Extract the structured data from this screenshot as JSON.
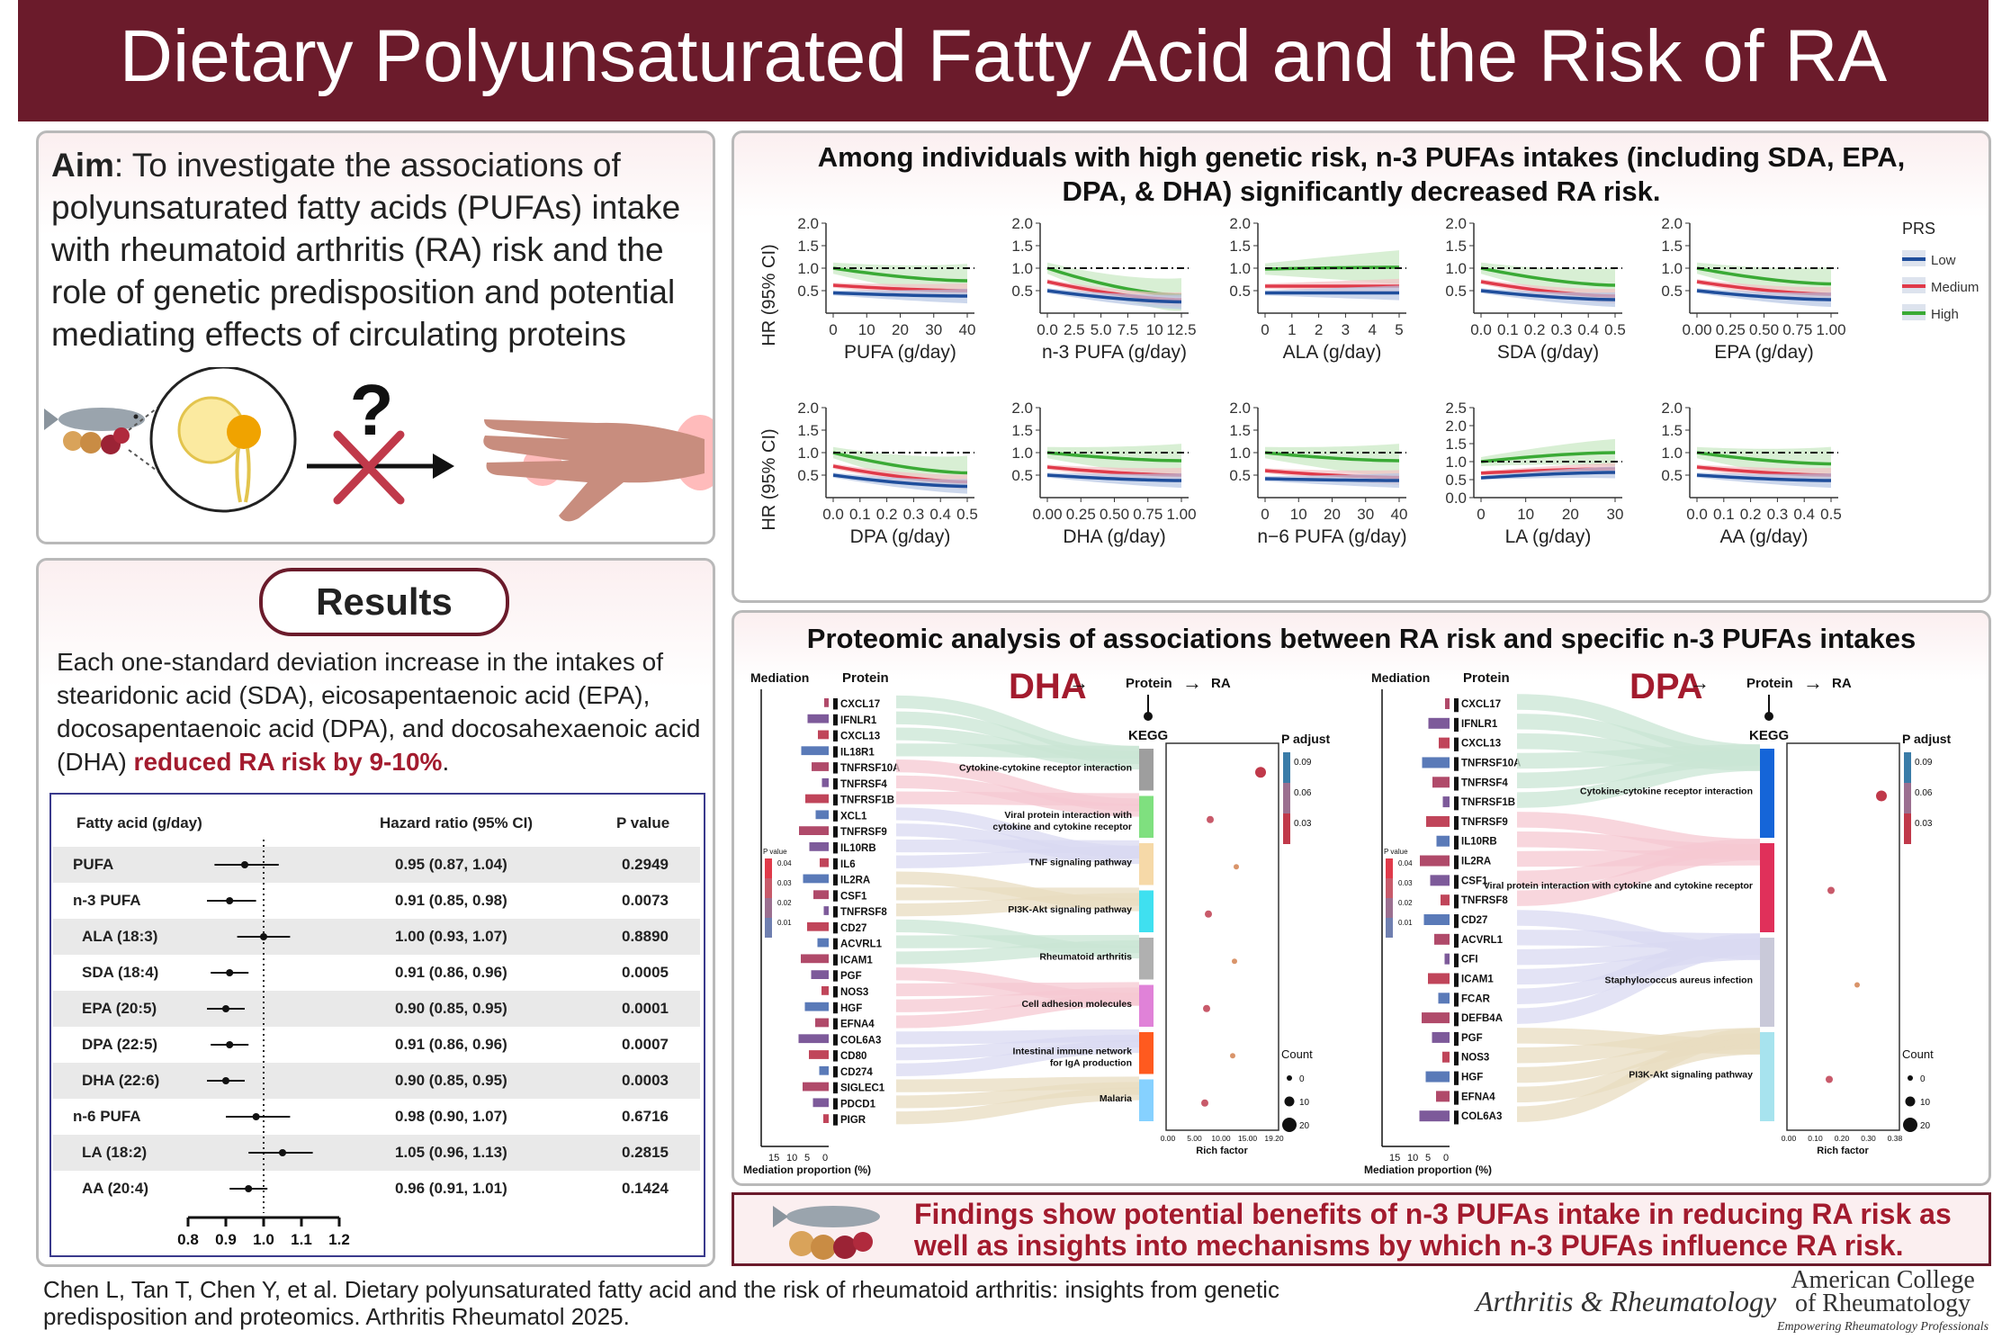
{
  "header": {
    "title": "Dietary Polyunsaturated Fatty Acid and the Risk of RA"
  },
  "aim": {
    "label": "Aim",
    "text": ": To investigate the associations of polyunsaturated fatty acids (PUFAs) intake with rheumatoid arthritis (RA) risk and the role of genetic predisposition and potential mediating effects of circulating proteins",
    "question_mark": "?"
  },
  "results": {
    "title": "Results",
    "text_before": "Each one-standard deviation increase in the intakes of stearidonic acid (SDA), eicosapentaenoic acid (EPA), docosapentaenoic acid (DPA), and docosahexaenoic acid (DHA) ",
    "text_highlight": "reduced RA risk by 9-10%",
    "text_after": "."
  },
  "forest": {
    "col_fatty": "Fatty acid (g/day)",
    "col_hr": "Hazard ratio (95% CI)",
    "col_p": "P value",
    "axis_ticks": [
      "0.8",
      "0.9",
      "1.0",
      "1.1",
      "1.2"
    ],
    "rows": [
      {
        "name": "PUFA",
        "hr": "0.95 (0.87, 1.04)",
        "p": "0.2949",
        "est": 0.95,
        "lo": 0.87,
        "hi": 1.04,
        "indent": false
      },
      {
        "name": "n-3 PUFA",
        "hr": "0.91 (0.85, 0.98)",
        "p": "0.0073",
        "est": 0.91,
        "lo": 0.85,
        "hi": 0.98,
        "indent": false
      },
      {
        "name": "ALA (18:3)",
        "hr": "1.00 (0.93, 1.07)",
        "p": "0.8890",
        "est": 1.0,
        "lo": 0.93,
        "hi": 1.07,
        "indent": true
      },
      {
        "name": "SDA (18:4)",
        "hr": "0.91 (0.86, 0.96)",
        "p": "0.0005",
        "est": 0.91,
        "lo": 0.86,
        "hi": 0.96,
        "indent": true
      },
      {
        "name": "EPA (20:5)",
        "hr": "0.90 (0.85, 0.95)",
        "p": "0.0001",
        "est": 0.9,
        "lo": 0.85,
        "hi": 0.95,
        "indent": true
      },
      {
        "name": "DPA (22:5)",
        "hr": "0.91 (0.86, 0.96)",
        "p": "0.0007",
        "est": 0.91,
        "lo": 0.86,
        "hi": 0.96,
        "indent": true
      },
      {
        "name": "DHA (22:6)",
        "hr": "0.90 (0.85, 0.95)",
        "p": "0.0003",
        "est": 0.9,
        "lo": 0.85,
        "hi": 0.95,
        "indent": true
      },
      {
        "name": "n-6 PUFA",
        "hr": "0.98 (0.90, 1.07)",
        "p": "0.6716",
        "est": 0.98,
        "lo": 0.9,
        "hi": 1.07,
        "indent": false
      },
      {
        "name": "LA (18:2)",
        "hr": "1.05 (0.96, 1.13)",
        "p": "0.2815",
        "est": 1.05,
        "lo": 0.96,
        "hi": 1.13,
        "indent": true
      },
      {
        "name": "AA (20:4)",
        "hr": "0.96 (0.91, 1.01)",
        "p": "0.1424",
        "est": 0.96,
        "lo": 0.91,
        "hi": 1.01,
        "indent": true
      }
    ]
  },
  "genetic": {
    "title_line1": "Among individuals with high genetic risk, n-3 PUFAs intakes (including SDA, EPA,",
    "title_line2": "DPA, & DHA) significantly decreased RA risk.",
    "ylabel": "HR (95% CI)",
    "legend_title": "PRS",
    "legend": [
      {
        "name": "Low",
        "color": "#1f4e9c"
      },
      {
        "name": "Medium",
        "color": "#e03a4a"
      },
      {
        "name": "High",
        "color": "#3aaa35"
      }
    ]
  },
  "chart_data": [
    {
      "type": "line",
      "xlabel": "PUFA (g/day)",
      "xticks": [
        "0",
        "10",
        "20",
        "30",
        "40"
      ],
      "yticks": [
        "0.5",
        "1.0",
        "1.5",
        "2.0"
      ],
      "ylim": [
        0,
        2.0
      ],
      "curves": {
        "low": [
          0.45,
          0.38
        ],
        "medium": [
          0.62,
          0.5
        ],
        "high": [
          1.0,
          0.72
        ]
      }
    },
    {
      "type": "line",
      "xlabel": "n-3 PUFA (g/day)",
      "xticks": [
        "0.0",
        "2.5",
        "5.0",
        "7.5",
        "10",
        "12.5"
      ],
      "yticks": [
        "0.5",
        "1.0",
        "1.5",
        "2.0"
      ],
      "ylim": [
        0,
        2.0
      ],
      "curves": {
        "low": [
          0.5,
          0.25
        ],
        "medium": [
          0.7,
          0.3
        ],
        "high": [
          1.0,
          0.4
        ]
      }
    },
    {
      "type": "line",
      "xlabel": "ALA (g/day)",
      "xticks": [
        "0",
        "1",
        "2",
        "3",
        "4",
        "5"
      ],
      "yticks": [
        "0.5",
        "1.0",
        "1.5",
        "2.0"
      ],
      "ylim": [
        0,
        2.0
      ],
      "curves": {
        "low": [
          0.45,
          0.45
        ],
        "medium": [
          0.6,
          0.6
        ],
        "high": [
          0.98,
          1.02
        ]
      }
    },
    {
      "type": "line",
      "xlabel": "SDA (g/day)",
      "xticks": [
        "0.0",
        "0.1",
        "0.2",
        "0.3",
        "0.4",
        "0.5"
      ],
      "yticks": [
        "0.5",
        "1.0",
        "1.5",
        "2.0"
      ],
      "ylim": [
        0,
        2.0
      ],
      "curves": {
        "low": [
          0.5,
          0.3
        ],
        "medium": [
          0.7,
          0.38
        ],
        "high": [
          1.0,
          0.62
        ]
      }
    },
    {
      "type": "line",
      "xlabel": "EPA (g/day)",
      "xticks": [
        "0.00",
        "0.25",
        "0.50",
        "0.75",
        "1.00"
      ],
      "yticks": [
        "0.5",
        "1.0",
        "1.5",
        "2.0"
      ],
      "ylim": [
        0,
        2.0
      ],
      "curves": {
        "low": [
          0.5,
          0.3
        ],
        "medium": [
          0.7,
          0.42
        ],
        "high": [
          1.0,
          0.65
        ]
      }
    },
    {
      "type": "line",
      "xlabel": "DPA (g/day)",
      "xticks": [
        "0.0",
        "0.1",
        "0.2",
        "0.3",
        "0.4",
        "0.5"
      ],
      "yticks": [
        "0.5",
        "1.0",
        "1.5",
        "2.0"
      ],
      "ylim": [
        0,
        2.0
      ],
      "curves": {
        "low": [
          0.5,
          0.25
        ],
        "medium": [
          0.7,
          0.35
        ],
        "high": [
          1.0,
          0.55
        ]
      }
    },
    {
      "type": "line",
      "xlabel": "DHA (g/day)",
      "xticks": [
        "0.00",
        "0.25",
        "0.50",
        "0.75",
        "1.00"
      ],
      "yticks": [
        "0.5",
        "1.0",
        "1.5",
        "2.0"
      ],
      "ylim": [
        0,
        2.0
      ],
      "curves": {
        "low": [
          0.5,
          0.38
        ],
        "medium": [
          0.68,
          0.5
        ],
        "high": [
          1.0,
          0.82
        ]
      }
    },
    {
      "type": "line",
      "xlabel": "n−6 PUFA (g/day)",
      "xticks": [
        "0",
        "10",
        "20",
        "30",
        "40"
      ],
      "yticks": [
        "0.5",
        "1.0",
        "1.5",
        "2.0"
      ],
      "ylim": [
        0,
        2.0
      ],
      "curves": {
        "low": [
          0.42,
          0.38
        ],
        "medium": [
          0.6,
          0.45
        ],
        "high": [
          1.0,
          0.82
        ]
      }
    },
    {
      "type": "line",
      "xlabel": "LA (g/day)",
      "xticks": [
        "0",
        "10",
        "20",
        "30"
      ],
      "yticks": [
        "0.0",
        "0.5",
        "1.0",
        "1.5",
        "2.0",
        "2.5"
      ],
      "ylim": [
        0,
        2.5
      ],
      "curves": {
        "low": [
          0.55,
          0.7
        ],
        "medium": [
          0.68,
          0.8
        ],
        "high": [
          1.0,
          1.25
        ]
      }
    },
    {
      "type": "line",
      "xlabel": "AA (g/day)",
      "xticks": [
        "0.0",
        "0.1",
        "0.2",
        "0.3",
        "0.4",
        "0.5"
      ],
      "yticks": [
        "0.5",
        "1.0",
        "1.5",
        "2.0"
      ],
      "ylim": [
        0,
        2.0
      ],
      "curves": {
        "low": [
          0.5,
          0.38
        ],
        "medium": [
          0.68,
          0.5
        ],
        "high": [
          1.0,
          0.75
        ]
      }
    }
  ],
  "proteomics": {
    "title": "Proteomic analysis of associations between RA risk and specific n-3 PUFAs intakes",
    "mediation_label": "Mediation",
    "protein_label": "Protein",
    "kegg_label": "KEGG",
    "p_adjust_label": "P adjust",
    "count_label": "Count",
    "rich_factor_label": "Rich factor",
    "mediation_axis_label": "Mediation proportion (%)",
    "mediation_ticks": [
      "15",
      "10",
      "5",
      "0"
    ],
    "arrow_protein": "Protein",
    "arrow_ra": "RA",
    "pvalue_legend": "P value",
    "pvalue_ticks": [
      "0.04",
      "0.03",
      "0.02",
      "0.01"
    ],
    "count_ticks": [
      "0",
      "10",
      "20"
    ],
    "dha": {
      "name": "DHA",
      "padj_ticks": [
        "0.09",
        "0.06",
        "0.03"
      ],
      "rich_ticks": [
        "0.00",
        "5.00",
        "10.00",
        "15.00",
        "19.20"
      ],
      "proteins": [
        "CXCL17",
        "IFNLR1",
        "CXCL13",
        "IL18R1",
        "TNFRSF10A",
        "TNFRSF4",
        "TNFRSF1B",
        "XCL1",
        "TNFRSF9",
        "IL10RB",
        "IL6",
        "IL2RA",
        "CSF1",
        "TNFRSF8",
        "CD27",
        "ACVRL1",
        "ICAM1",
        "PGF",
        "NOS3",
        "HGF",
        "EFNA4",
        "COL6A3",
        "CD80",
        "CD274",
        "SIGLEC1",
        "PDCD1",
        "PIGR"
      ],
      "pathways": [
        "Cytokine-cytokine receptor interaction",
        "Viral protein interaction with cytokine and cytokine receptor",
        "TNF signaling pathway",
        "PI3K-Akt signaling pathway",
        "Rheumatoid arthritis",
        "Cell adhesion molecules",
        "Intestinal immune network for IgA production",
        "Malaria"
      ]
    },
    "dpa": {
      "name": "DPA",
      "padj_ticks": [
        "0.09",
        "0.06",
        "0.03"
      ],
      "rich_ticks": [
        "0.00",
        "0.10",
        "0.20",
        "0.30",
        "0.38"
      ],
      "proteins": [
        "CXCL17",
        "IFNLR1",
        "CXCL13",
        "TNFRSF10A",
        "TNFRSF4",
        "TNFRSF1B",
        "TNFRSF9",
        "IL10RB",
        "IL2RA",
        "CSF1",
        "TNFRSF8",
        "CD27",
        "ACVRL1",
        "CFI",
        "ICAM1",
        "FCAR",
        "DEFB4A",
        "PGF",
        "NOS3",
        "HGF",
        "EFNA4",
        "COL6A3"
      ],
      "pathways": [
        "Cytokine-cytokine receptor interaction",
        "Viral protein interaction with cytokine and cytokine receptor",
        "Staphylococcus aureus infection",
        "PI3K-Akt signaling pathway"
      ]
    }
  },
  "findings": {
    "text": "Findings show potential benefits of n-3 PUFAs intake in reducing RA risk as well as insights into mechanisms by which n-3 PUFAs influence RA risk."
  },
  "citation": {
    "text": "Chen L, Tan T, Chen Y, et al. Dietary polyunsaturated fatty acid and the risk of rheumatoid arthritis: insights from genetic predisposition and proteomics. Arthritis Rheumatol 2025."
  },
  "journal": {
    "name": "Arthritis & Rheumatology"
  },
  "acr": {
    "line1": "American College",
    "line2": "of Rheumatology",
    "line3": "Empowering Rheumatology Professionals"
  }
}
